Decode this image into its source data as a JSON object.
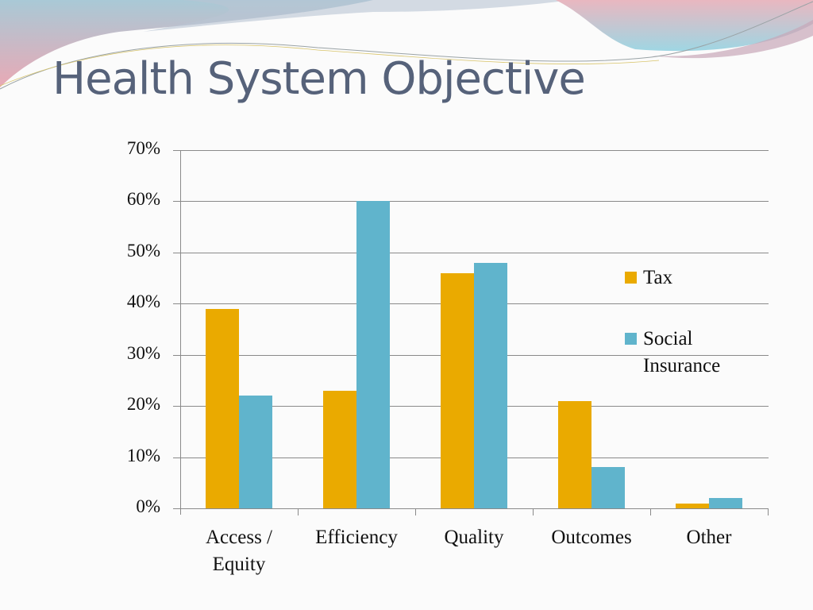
{
  "slide": {
    "title": "Health System Objective"
  },
  "colors": {
    "tax": "#eaaa00",
    "social_insurance": "#60b4cc",
    "title": "#56627a",
    "gridline": "#8a8a8a"
  },
  "chart_data": {
    "type": "bar",
    "title": "Health System Objective",
    "xlabel": "",
    "ylabel": "",
    "categories": [
      "Access / Equity",
      "Efficiency",
      "Quality",
      "Outcomes",
      "Other"
    ],
    "series": [
      {
        "name": "Tax",
        "color": "#eaaa00",
        "values": [
          39,
          23,
          46,
          21,
          1
        ]
      },
      {
        "name": "Social Insurance",
        "color": "#60b4cc",
        "values": [
          22,
          60,
          48,
          8,
          2
        ]
      }
    ],
    "ylim": [
      0,
      70
    ],
    "yticks": [
      "0%",
      "10%",
      "20%",
      "30%",
      "40%",
      "50%",
      "60%",
      "70%"
    ],
    "grid": true,
    "legend_position": "right-inside"
  }
}
